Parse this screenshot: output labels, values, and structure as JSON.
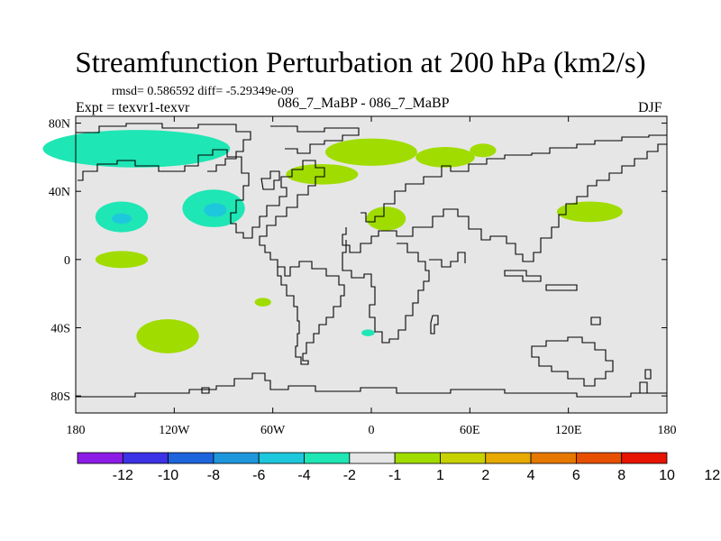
{
  "chart_data": {
    "type": "heatmap",
    "title": "Streamfunction Perturbation at 200 hPa (km2/s)",
    "stats_text": "rmsd= 0.586592 diff= -5.29349e-09",
    "expt_text": "Expt = texvr1-texvr",
    "experiments_text": "086_7_MaBP - 086_7_MaBP",
    "season": "DJF",
    "xlim": [
      -180,
      180
    ],
    "ylim": [
      -90,
      84
    ],
    "x_ticks": [
      {
        "value": -180,
        "label": "180"
      },
      {
        "value": -120,
        "label": "120W"
      },
      {
        "value": -60,
        "label": "60W"
      },
      {
        "value": 0,
        "label": "0"
      },
      {
        "value": 60,
        "label": "60E"
      },
      {
        "value": 120,
        "label": "120E"
      },
      {
        "value": 180,
        "label": "180"
      }
    ],
    "y_ticks": [
      {
        "value": 80,
        "label": "80N"
      },
      {
        "value": 40,
        "label": "40N"
      },
      {
        "value": 0,
        "label": "0"
      },
      {
        "value": -40,
        "label": "40S"
      },
      {
        "value": -80,
        "label": "80S"
      }
    ],
    "colorbar": {
      "colors": [
        "#8c1ce6",
        "#3c32e6",
        "#1e64dc",
        "#1e96dc",
        "#1ec8dc",
        "#1ee6b4",
        "#e6e6e6",
        "#a0dc00",
        "#c8d200",
        "#e6aa00",
        "#e67800",
        "#e65000",
        "#e61400"
      ],
      "labels": [
        "-12",
        "-10",
        "-8",
        "-6",
        "-4",
        "-2",
        "-1",
        "1",
        "2",
        "4",
        "6",
        "8",
        "10",
        "12"
      ]
    },
    "anomalies": [
      {
        "lon": -143,
        "lat": 65,
        "dlon": 57,
        "dlat": 11,
        "level": "-2",
        "color": "#1ee6b4"
      },
      {
        "lon": -152,
        "lat": 25,
        "dlon": 16,
        "dlat": 9,
        "level": "-2",
        "color": "#1ee6b4"
      },
      {
        "lon": -152,
        "lat": 24,
        "dlon": 6,
        "dlat": 3,
        "level": "-4",
        "color": "#1ec8dc"
      },
      {
        "lon": -96,
        "lat": 30,
        "dlon": 19,
        "dlat": 11,
        "level": "-2",
        "color": "#1ee6b4"
      },
      {
        "lon": -95,
        "lat": 29,
        "dlon": 7,
        "dlat": 4,
        "level": "-4",
        "color": "#1ec8dc"
      },
      {
        "lon": -152,
        "lat": 0,
        "dlon": 16,
        "dlat": 5,
        "level": "1",
        "color": "#a0dc00"
      },
      {
        "lon": -30,
        "lat": 50,
        "dlon": 22,
        "dlat": 6,
        "level": "1",
        "color": "#a0dc00"
      },
      {
        "lon": 0,
        "lat": 63,
        "dlon": 28,
        "dlat": 8,
        "level": "1",
        "color": "#a0dc00"
      },
      {
        "lon": 45,
        "lat": 60,
        "dlon": 18,
        "dlat": 6,
        "level": "1",
        "color": "#a0dc00"
      },
      {
        "lon": 68,
        "lat": 64,
        "dlon": 8,
        "dlat": 4,
        "level": "1",
        "color": "#a0dc00"
      },
      {
        "lon": 9,
        "lat": 24,
        "dlon": 12,
        "dlat": 7,
        "level": "1",
        "color": "#a0dc00"
      },
      {
        "lon": 133,
        "lat": 28,
        "dlon": 20,
        "dlat": 6,
        "level": "1",
        "color": "#a0dc00"
      },
      {
        "lon": -124,
        "lat": -45,
        "dlon": 19,
        "dlat": 10,
        "level": "1",
        "color": "#a0dc00"
      },
      {
        "lon": -66,
        "lat": -25,
        "dlon": 5,
        "dlat": 2.5,
        "level": "1",
        "color": "#a0dc00"
      },
      {
        "lon": -2,
        "lat": -43,
        "dlon": 4,
        "dlat": 2,
        "level": "-2",
        "color": "#1ee6b4"
      }
    ]
  }
}
